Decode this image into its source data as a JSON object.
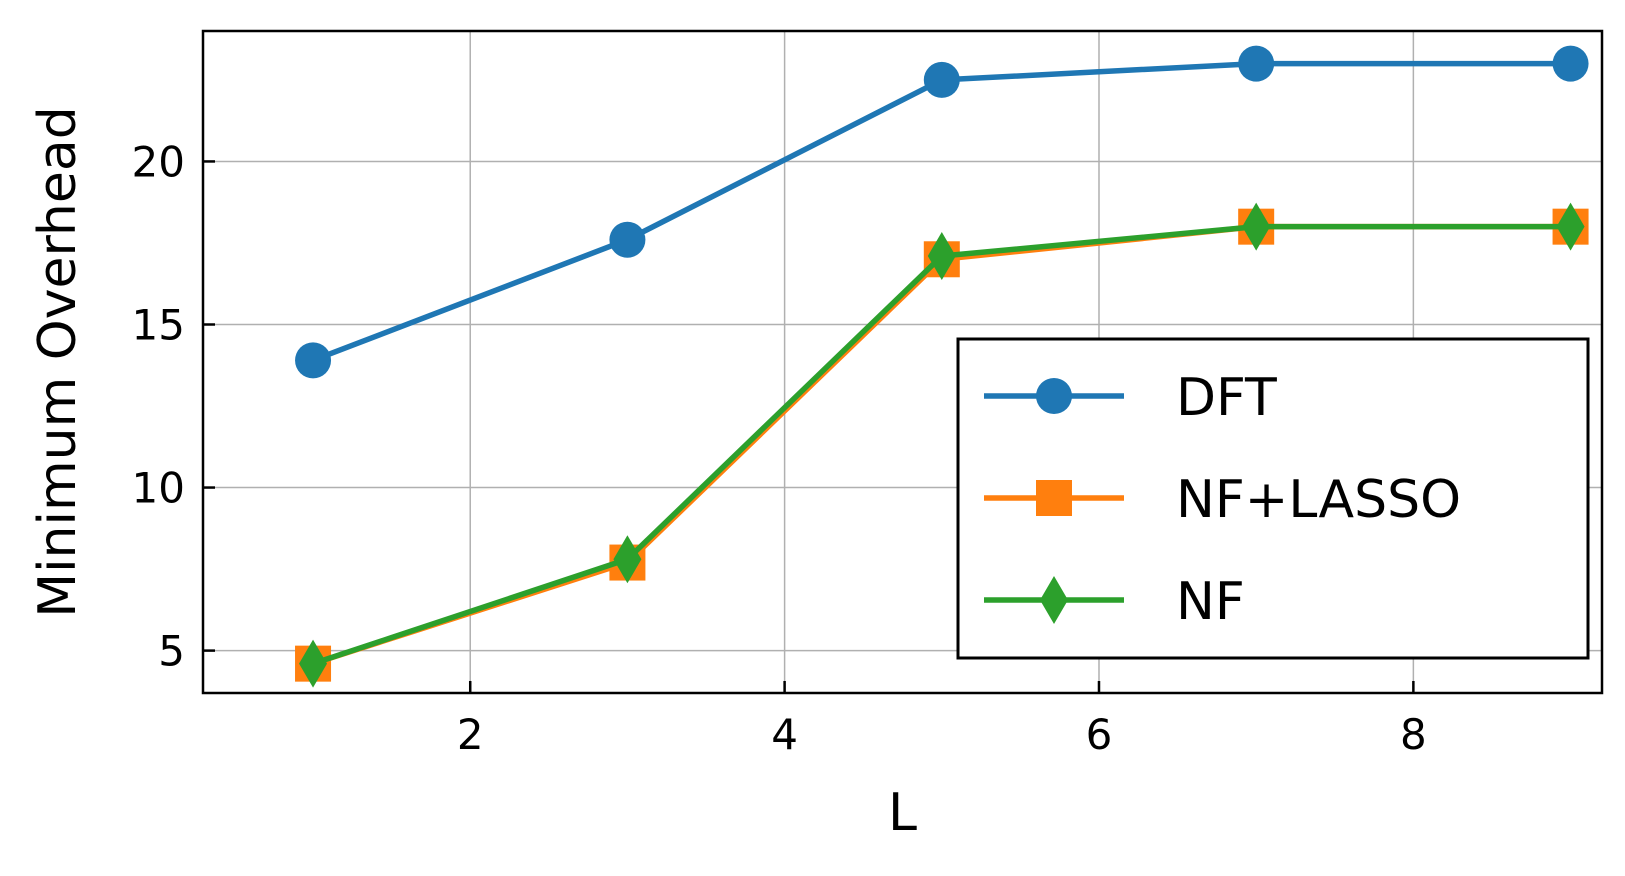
{
  "chart_data": {
    "type": "line",
    "title": "",
    "xlabel": "L",
    "ylabel": "Minimum Overhead",
    "xlim": [
      0.3,
      9.2
    ],
    "ylim": [
      3.7,
      24.0
    ],
    "xticks": [
      2,
      4,
      6,
      8
    ],
    "yticks": [
      5,
      10,
      15,
      20
    ],
    "grid": true,
    "legend_position": "lower-right",
    "x": [
      1,
      3,
      5,
      7,
      9
    ],
    "series": [
      {
        "name": "DFT",
        "color": "#1f77b4",
        "marker": "circle",
        "values": [
          13.9,
          17.6,
          22.5,
          23.0,
          23.0
        ]
      },
      {
        "name": "NF+LASSO",
        "color": "#ff7f0e",
        "marker": "square",
        "values": [
          4.6,
          7.7,
          17.0,
          18.0,
          18.0
        ]
      },
      {
        "name": "NF",
        "color": "#2ca02c",
        "marker": "diamond",
        "values": [
          4.6,
          7.8,
          17.1,
          18.0,
          18.0
        ]
      }
    ]
  }
}
